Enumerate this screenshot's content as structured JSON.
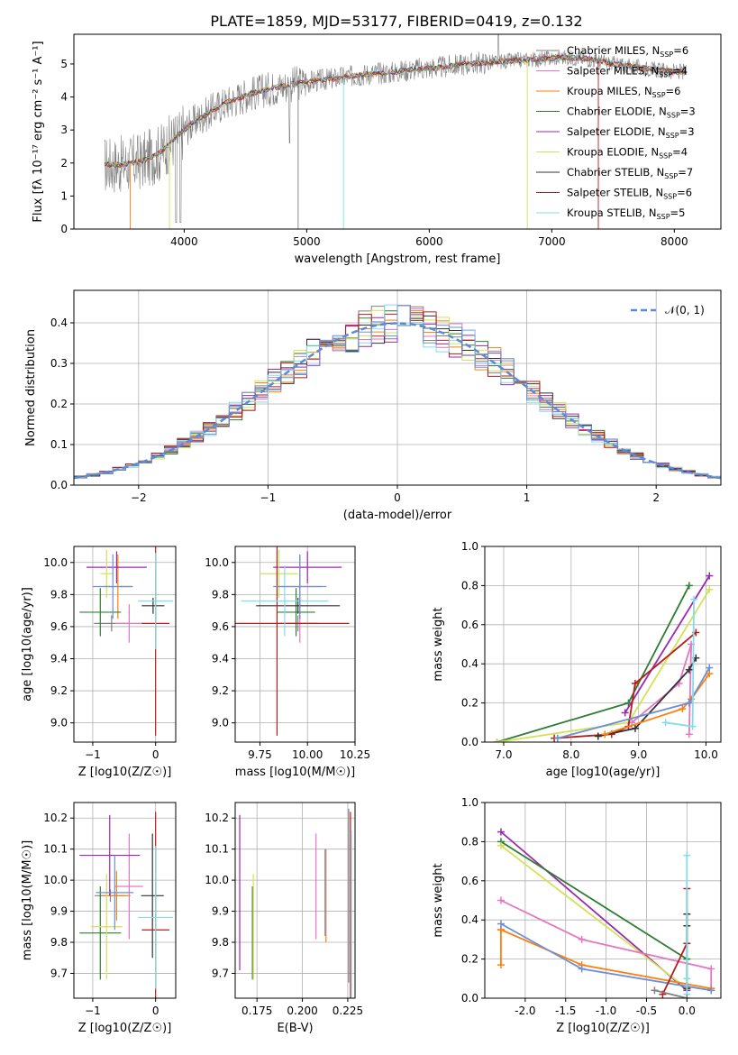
{
  "figure": {
    "title": "PLATE=1859, MJD=53177, FIBERID=0419, z=0.132"
  },
  "chart_data": [
    {
      "type": "line",
      "id": "spectrum",
      "xlabel": "wavelength [Angstrom, rest frame]",
      "ylabel": "Flux [fλ 10⁻¹⁷ erg cm⁻² s⁻¹ A⁻¹]",
      "xlim": [
        3100,
        8380
      ],
      "ylim": [
        0,
        5.9
      ],
      "xticks": [
        4000,
        5000,
        6000,
        7000,
        8000
      ],
      "yticks": [
        0,
        1,
        2,
        3,
        4,
        5
      ],
      "grid": false,
      "legend_position": "right",
      "series": [
        {
          "name": "Chabrier MILES, N",
          "sub": "SSP",
          "suffix": "=6",
          "color": "#808080"
        },
        {
          "name": "Salpeter MILES, N",
          "sub": "SSP",
          "suffix": "=4",
          "color": "#e377c2"
        },
        {
          "name": "Kroupa MILES, N",
          "sub": "SSP",
          "suffix": "=6",
          "color": "#ff7f0e"
        },
        {
          "name": "Chabrier ELODIE, N",
          "sub": "SSP",
          "suffix": "=3",
          "color": "#2e7d32"
        },
        {
          "name": "Salpeter ELODIE, N",
          "sub": "SSP",
          "suffix": "=3",
          "color": "#9c27b0"
        },
        {
          "name": "Kroupa ELODIE, N",
          "sub": "SSP",
          "suffix": "=4",
          "color": "#d4e157"
        },
        {
          "name": "Chabrier STELIB, N",
          "sub": "SSP",
          "suffix": "=7",
          "color": "#333333"
        },
        {
          "name": "Salpeter STELIB, N",
          "sub": "SSP",
          "suffix": "=6",
          "color": "#b71c1c"
        },
        {
          "name": "Kroupa STELIB, N",
          "sub": "SSP",
          "suffix": "=5",
          "color": "#80deea"
        }
      ],
      "continuum": {
        "x": [
          3350,
          3500,
          3650,
          3800,
          3950,
          4100,
          4300,
          4500,
          4700,
          4900,
          5100,
          5300,
          5500,
          5700,
          5900,
          6100,
          6300,
          6500,
          6700,
          6900,
          7100,
          7300,
          7500,
          7700,
          7900,
          8100
        ],
        "y": [
          1.95,
          1.95,
          2.05,
          2.3,
          2.85,
          3.3,
          3.75,
          4.05,
          4.25,
          4.4,
          4.5,
          4.6,
          4.7,
          4.75,
          4.85,
          4.9,
          5.0,
          5.05,
          5.1,
          5.15,
          5.2,
          5.15,
          5.0,
          4.9,
          4.8,
          4.75
        ]
      }
    },
    {
      "type": "histogram",
      "id": "residuals",
      "xlabel": "(data-model)/error",
      "ylabel": "Normed distribution",
      "xlim": [
        -2.5,
        2.5
      ],
      "ylim": [
        0,
        0.48
      ],
      "xticks": [
        -2,
        -1,
        0,
        1,
        2
      ],
      "yticks": [
        0.0,
        0.1,
        0.2,
        0.3,
        0.4
      ],
      "grid": true,
      "legend": "𝒩(0, 1)",
      "legend_position": "top-right",
      "bin_width": 0.1,
      "gaussian": {
        "mean": 0,
        "sigma": 1
      }
    },
    {
      "type": "scatter",
      "id": "z-age",
      "xlabel": "Z [log10(Z/Z☉)]",
      "ylabel": "age  [log10(age/yr)]",
      "xlim": [
        -1.3,
        0.32
      ],
      "ylim": [
        8.88,
        10.1
      ],
      "xticks": [
        -1,
        0
      ],
      "yticks": [
        9.0,
        9.2,
        9.4,
        9.6,
        9.8,
        10.0
      ],
      "grid": true,
      "points": [
        {
          "x": -0.7,
          "xerr": 0.28,
          "y": 9.62,
          "yerr": 0.05,
          "color": "#808080"
        },
        {
          "x": -0.42,
          "xerr": 0.22,
          "y": 9.62,
          "yerr": 0.12,
          "color": "#e377c2"
        },
        {
          "x": -0.6,
          "xerr": 0.22,
          "y": 9.85,
          "yerr": 0.2,
          "color": "#ff7f0e"
        },
        {
          "x": -0.88,
          "xerr": 0.33,
          "y": 9.69,
          "yerr": 0.15,
          "color": "#2e7d32"
        },
        {
          "x": -0.62,
          "xerr": 0.48,
          "y": 9.97,
          "yerr": 0.1,
          "color": "#9c27b0"
        },
        {
          "x": -0.78,
          "xerr": 0.1,
          "y": 9.93,
          "yerr": 0.15,
          "color": "#d4e157"
        },
        {
          "x": -0.04,
          "xerr": 0.18,
          "y": 9.73,
          "yerr": 0.05,
          "color": "#333333"
        },
        {
          "x": 0.0,
          "xerr": 0.22,
          "y": 9.62,
          "yerr": 0.7,
          "color": "#b71c1c"
        },
        {
          "x": 0.0,
          "xerr": 0.28,
          "y": 9.76,
          "yerr": 0.3,
          "color": "#80deea"
        },
        {
          "x": -0.68,
          "xerr": 0.32,
          "y": 9.85,
          "yerr": 0.2,
          "color": "#6a8fd8"
        }
      ]
    },
    {
      "type": "scatter",
      "id": "mass-age",
      "xlabel": "mass [log10(M/M☉)]",
      "ylabel": "",
      "xlim": [
        9.62,
        10.25
      ],
      "ylim": [
        8.88,
        10.1
      ],
      "xticks": [
        9.75,
        10.0,
        10.25
      ],
      "yticks": [
        9.0,
        9.2,
        9.4,
        9.6,
        9.8,
        10.0
      ],
      "grid": true,
      "points": [
        {
          "x": 9.95,
          "xerr": 0.1,
          "y": 9.62,
          "yerr": 0.05,
          "color": "#808080"
        },
        {
          "x": 9.96,
          "xerr": 0.1,
          "y": 9.62,
          "yerr": 0.12,
          "color": "#e377c2"
        },
        {
          "x": 9.96,
          "xerr": 0.12,
          "y": 9.85,
          "yerr": 0.2,
          "color": "#ff7f0e"
        },
        {
          "x": 9.94,
          "xerr": 0.1,
          "y": 9.69,
          "yerr": 0.15,
          "color": "#2e7d32"
        },
        {
          "x": 10.0,
          "xerr": 0.18,
          "y": 9.97,
          "yerr": 0.1,
          "color": "#9c27b0"
        },
        {
          "x": 9.85,
          "xerr": 0.1,
          "y": 9.93,
          "yerr": 0.15,
          "color": "#d4e157"
        },
        {
          "x": 9.95,
          "xerr": 0.22,
          "y": 9.73,
          "yerr": 0.05,
          "color": "#333333"
        },
        {
          "x": 9.84,
          "xerr": 0.38,
          "y": 9.62,
          "yerr": 0.7,
          "color": "#b71c1c"
        },
        {
          "x": 9.88,
          "xerr": 0.23,
          "y": 9.76,
          "yerr": 0.22,
          "color": "#80deea"
        },
        {
          "x": 9.96,
          "xerr": 0.14,
          "y": 9.85,
          "yerr": 0.2,
          "color": "#6a8fd8"
        }
      ]
    },
    {
      "type": "line",
      "id": "age-weight",
      "xlabel": "age  [log10(age/yr)]",
      "ylabel": "mass weight",
      "xlim": [
        6.72,
        10.22
      ],
      "ylim": [
        0,
        1.0
      ],
      "xticks": [
        7,
        8,
        9,
        10
      ],
      "yticks": [
        0.0,
        0.2,
        0.4,
        0.6,
        0.8,
        1.0
      ],
      "grid": true,
      "series": [
        {
          "color": "#2e7d32",
          "x": [
            6.9,
            8.85,
            9.75
          ],
          "y": [
            0.0,
            0.2,
            0.8
          ]
        },
        {
          "color": "#9c27b0",
          "x": [
            8.8,
            10.05
          ],
          "y": [
            0.15,
            0.85
          ]
        },
        {
          "color": "#d4e157",
          "x": [
            6.9,
            8.85,
            10.05
          ],
          "y": [
            0.0,
            0.1,
            0.78
          ]
        },
        {
          "color": "#e377c2",
          "x": [
            8.9,
            9.6,
            9.78,
            9.75
          ],
          "y": [
            0.1,
            0.3,
            0.5,
            0.04
          ]
        },
        {
          "color": "#b71c1c",
          "x": [
            7.75,
            8.6,
            8.85,
            8.95,
            9.85
          ],
          "y": [
            0.02,
            0.04,
            0.08,
            0.3,
            0.56
          ]
        },
        {
          "color": "#333333",
          "x": [
            8.4,
            8.95,
            9.75,
            9.85
          ],
          "y": [
            0.03,
            0.07,
            0.37,
            0.43
          ]
        },
        {
          "color": "#ff7f0e",
          "x": [
            8.5,
            9.65,
            9.78,
            10.05
          ],
          "y": [
            0.04,
            0.17,
            0.22,
            0.35
          ]
        },
        {
          "color": "#6a8fd8",
          "x": [
            7.8,
            9.75,
            10.05
          ],
          "y": [
            0.02,
            0.2,
            0.38
          ]
        },
        {
          "color": "#80deea",
          "x": [
            9.4,
            9.8,
            9.82
          ],
          "y": [
            0.1,
            0.08,
            0.73
          ]
        }
      ]
    },
    {
      "type": "scatter",
      "id": "z-mass",
      "xlabel": "Z [log10(Z/Z☉)]",
      "ylabel": "mass [log10(M/M☉)]",
      "xlim": [
        -1.3,
        0.32
      ],
      "ylim": [
        9.62,
        10.25
      ],
      "xticks": [
        -1,
        0
      ],
      "yticks": [
        9.7,
        9.8,
        9.9,
        10.0,
        10.1,
        10.2
      ],
      "grid": true,
      "points": [
        {
          "x": -0.72,
          "xerr": 0.25,
          "y": 9.95,
          "yerr": 0.02,
          "color": "#808080"
        },
        {
          "x": -0.42,
          "xerr": 0.22,
          "y": 9.98,
          "yerr": 0.17,
          "color": "#e377c2"
        },
        {
          "x": -0.62,
          "xerr": 0.22,
          "y": 9.95,
          "yerr": 0.08,
          "color": "#ff7f0e"
        },
        {
          "x": -0.88,
          "xerr": 0.33,
          "y": 9.83,
          "yerr": 0.15,
          "color": "#2e7d32"
        },
        {
          "x": -0.73,
          "xerr": 0.48,
          "y": 10.08,
          "yerr": 0.13,
          "color": "#9c27b0"
        },
        {
          "x": -0.78,
          "xerr": 0.25,
          "y": 9.85,
          "yerr": 0.17,
          "color": "#d4e157"
        },
        {
          "x": -0.05,
          "xerr": 0.18,
          "y": 9.95,
          "yerr": 0.2,
          "color": "#333333"
        },
        {
          "x": 0.0,
          "xerr": 0.22,
          "y": 9.84,
          "yerr": 0.38,
          "color": "#b71c1c"
        },
        {
          "x": 0.0,
          "xerr": 0.28,
          "y": 9.88,
          "yerr": 0.23,
          "color": "#80deea"
        },
        {
          "x": -0.65,
          "xerr": 0.3,
          "y": 9.96,
          "yerr": 0.12,
          "color": "#6a8fd8"
        }
      ]
    },
    {
      "type": "scatter",
      "id": "ebv-mass",
      "xlabel": "E(B-V)",
      "ylabel": "",
      "xlim": [
        0.163,
        0.229
      ],
      "ylim": [
        9.62,
        10.25
      ],
      "xticks": [
        0.175,
        0.2,
        0.225
      ],
      "yticks": [
        9.7,
        9.8,
        9.9,
        10.0,
        10.1,
        10.2
      ],
      "grid": true,
      "points": [
        {
          "x": 0.1655,
          "y": 9.96,
          "yerr": 0.25,
          "color": "#9c27b0"
        },
        {
          "x": 0.1725,
          "y": 9.83,
          "yerr": 0.15,
          "color": "#2e7d32"
        },
        {
          "x": 0.173,
          "y": 9.85,
          "yerr": 0.17,
          "color": "#d4e157"
        },
        {
          "x": 0.2075,
          "y": 9.98,
          "yerr": 0.17,
          "color": "#e377c2"
        },
        {
          "x": 0.213,
          "y": 9.95,
          "yerr": 0.15,
          "color": "#ff7f0e"
        },
        {
          "x": 0.2125,
          "y": 9.96,
          "yerr": 0.14,
          "color": "#6a8fd8"
        },
        {
          "x": 0.2255,
          "y": 9.95,
          "yerr": 0.28,
          "color": "#808080"
        },
        {
          "x": 0.2265,
          "y": 9.84,
          "yerr": 0.38,
          "color": "#b71c1c"
        },
        {
          "x": 0.227,
          "y": 9.88,
          "yerr": 0.28,
          "color": "#80deea"
        }
      ]
    },
    {
      "type": "line",
      "id": "z-weight",
      "xlabel": "Z [log10(Z/Z☉)]",
      "ylabel": "mass weight",
      "xlim": [
        -2.5,
        0.42
      ],
      "ylim": [
        0,
        1.0
      ],
      "xticks": [
        -2.0,
        -1.5,
        -1.0,
        -0.5,
        0.0
      ],
      "yticks": [
        0.0,
        0.2,
        0.4,
        0.6,
        0.8,
        1.0
      ],
      "grid": true,
      "series": [
        {
          "color": "#9c27b0",
          "x": [
            -2.3,
            0.0
          ],
          "y": [
            0.85,
            0.04
          ]
        },
        {
          "color": "#2e7d32",
          "x": [
            -2.3,
            0.0
          ],
          "y": [
            0.8,
            0.2
          ]
        },
        {
          "color": "#d4e157",
          "x": [
            -2.3,
            0.0
          ],
          "y": [
            0.78,
            0.05
          ]
        },
        {
          "color": "#e377c2",
          "x": [
            -2.3,
            -1.3,
            0.3,
            0.3
          ],
          "y": [
            0.5,
            0.3,
            0.15,
            0.05
          ]
        },
        {
          "color": "#ff7f0e",
          "x": [
            -2.3,
            -2.3,
            -2.3,
            -1.3,
            0.3,
            0.3
          ],
          "y": [
            0.17,
            0.35,
            0.35,
            0.17,
            0.05,
            0.04
          ]
        },
        {
          "color": "#6a8fd8",
          "x": [
            -2.3,
            -1.3,
            0.3
          ],
          "y": [
            0.38,
            0.15,
            0.04
          ]
        },
        {
          "color": "#b71c1c",
          "x": [
            -0.3,
            0.0,
            0.0
          ],
          "y": [
            0.02,
            0.28,
            0.56
          ]
        },
        {
          "color": "#333333",
          "x": [
            0.0,
            0.0,
            0.0
          ],
          "y": [
            0.43,
            0.37,
            0.05
          ]
        },
        {
          "color": "#80deea",
          "x": [
            0.0,
            0.0,
            0.0
          ],
          "y": [
            0.73,
            0.1,
            0.02
          ]
        },
        {
          "color": "#808080",
          "x": [
            -0.4,
            0.0
          ],
          "y": [
            0.04,
            0.0
          ]
        }
      ]
    }
  ]
}
